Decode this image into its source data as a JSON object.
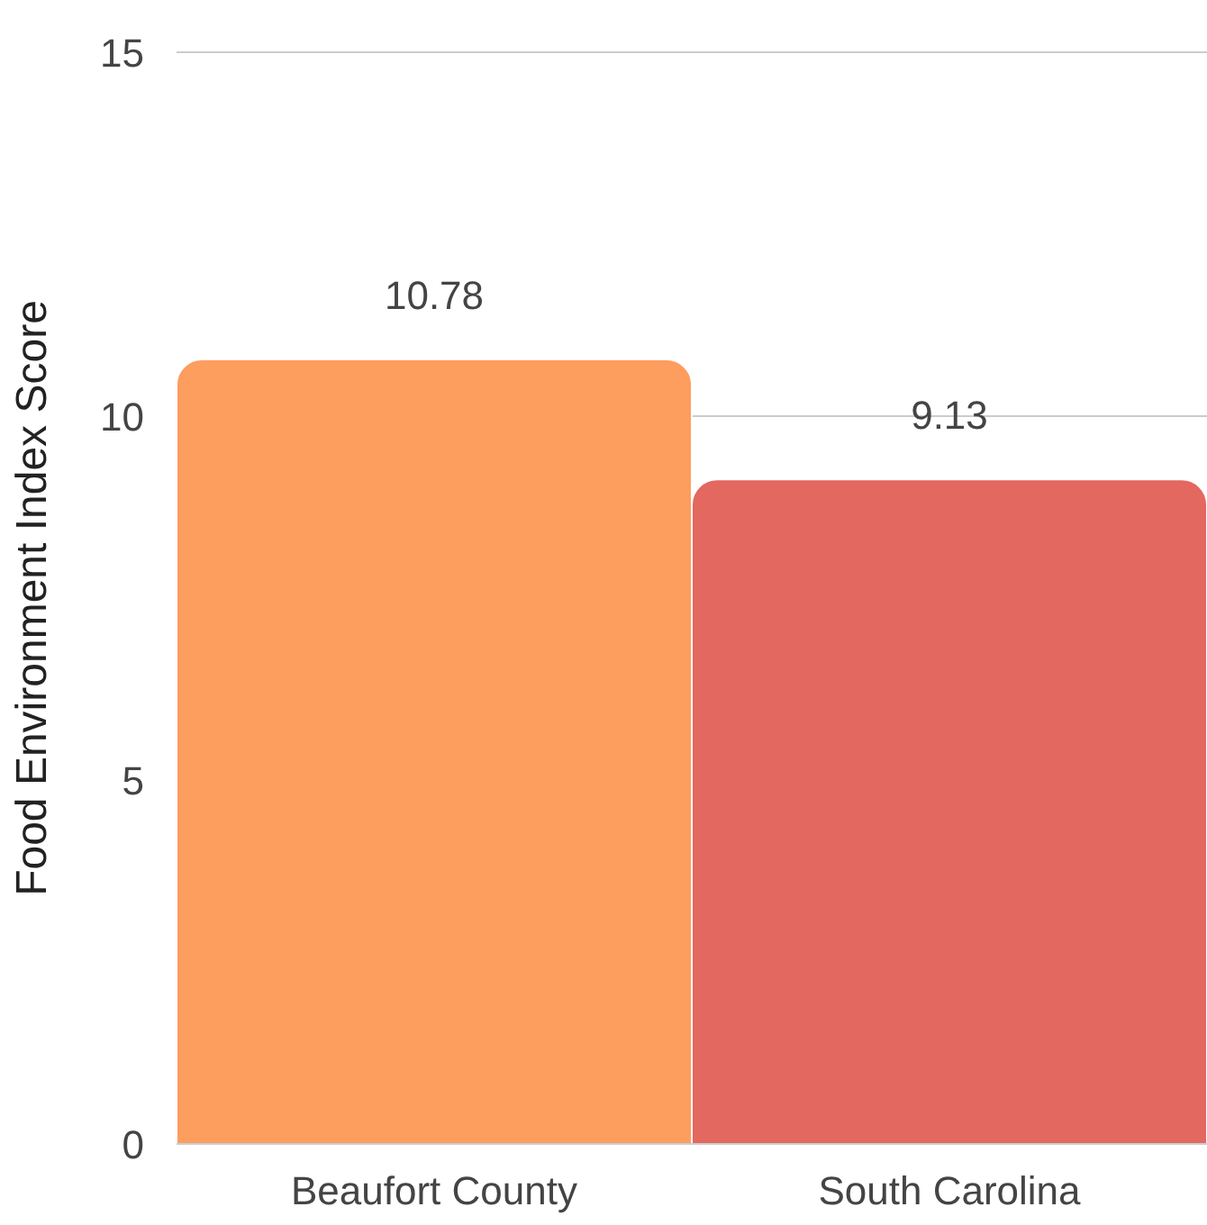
{
  "chart_data": {
    "type": "bar",
    "ylabel": "Food Environment Index Score",
    "categories": [
      "Beaufort County",
      "South Carolina"
    ],
    "values": [
      10.78,
      9.13
    ],
    "colors": [
      "#fd9d5e",
      "#e3685f"
    ],
    "ylim": [
      0,
      15
    ],
    "yticks": [
      0,
      5,
      10,
      15
    ],
    "grid": "y",
    "data_labels": true
  }
}
